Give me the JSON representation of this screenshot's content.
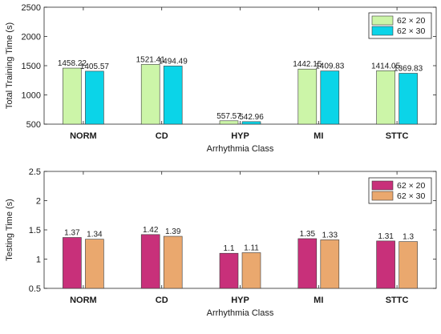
{
  "chart_data": [
    {
      "type": "bar",
      "categories": [
        "NORM",
        "CD",
        "HYP",
        "MI",
        "STTC"
      ],
      "series": [
        {
          "name": "62 × 20",
          "values": [
            1458.22,
            1521.41,
            557.57,
            1442.15,
            1414.05
          ],
          "color": "#ccf5a8"
        },
        {
          "name": "62 × 30",
          "values": [
            1405.57,
            1494.49,
            542.96,
            1409.83,
            1369.83
          ],
          "color": "#0bd4e8"
        }
      ],
      "value_labels": [
        [
          "1458.22",
          "1521.41",
          "557.57",
          "1442.15",
          "1414.05"
        ],
        [
          "1405.57",
          "1494.49",
          "542.96",
          "1409.83",
          "1369.83"
        ]
      ],
      "xlabel": "Arrhythmia Class",
      "ylabel": "Total Training Time (s)",
      "ylim": [
        500,
        2500
      ],
      "yticks": [
        500,
        1000,
        1500,
        2000,
        2500
      ],
      "ytick_labels": [
        "500",
        "1000",
        "1500",
        "2000",
        "2500"
      ],
      "grid": false,
      "legend": "top-right"
    },
    {
      "type": "bar",
      "categories": [
        "NORM",
        "CD",
        "HYP",
        "MI",
        "STTC"
      ],
      "series": [
        {
          "name": "62 × 20",
          "values": [
            1.37,
            1.42,
            1.1,
            1.35,
            1.31
          ],
          "color": "#c8307a"
        },
        {
          "name": "62 × 30",
          "values": [
            1.34,
            1.39,
            1.11,
            1.33,
            1.3
          ],
          "color": "#eaa86e"
        }
      ],
      "value_labels": [
        [
          "1.37",
          "1.42",
          "1.1",
          "1.35",
          "1.31"
        ],
        [
          "1.34",
          "1.39",
          "1.11",
          "1.33",
          "1.3"
        ]
      ],
      "xlabel": "Arrhythmia Class",
      "ylabel": "Testing Time (s)",
      "ylim": [
        0.5,
        2.5
      ],
      "yticks": [
        0.5,
        1,
        1.5,
        2,
        2.5
      ],
      "ytick_labels": [
        "0.5",
        "1",
        "1.5",
        "2",
        "2.5"
      ],
      "grid": false,
      "legend": "top-right"
    }
  ]
}
